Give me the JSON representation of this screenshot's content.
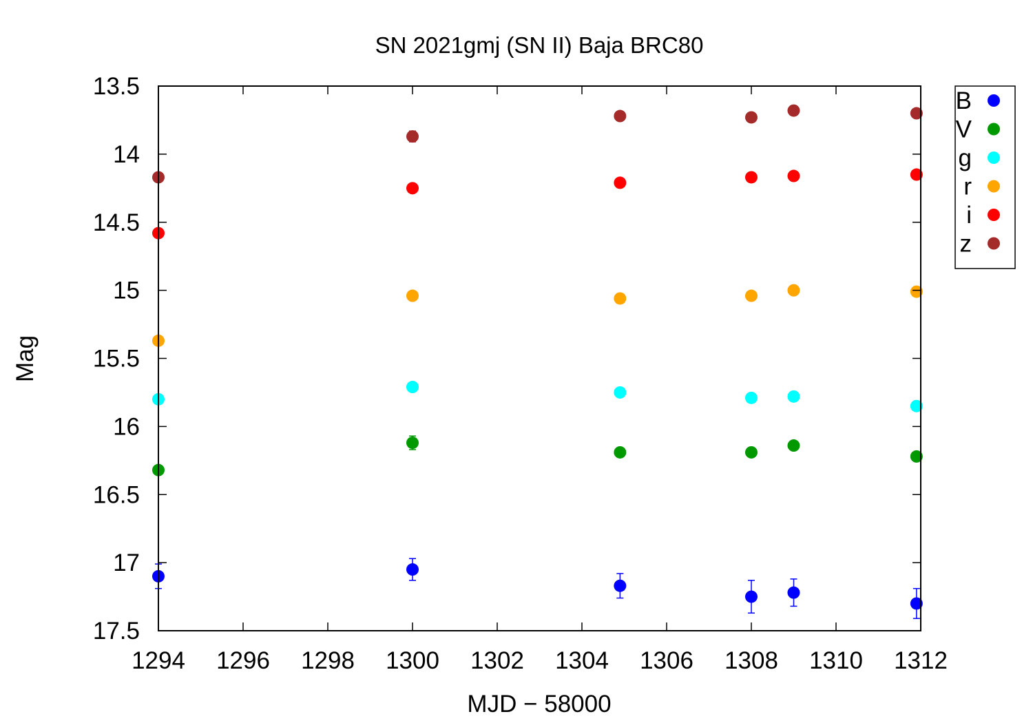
{
  "chart_data": {
    "type": "scatter",
    "title": "SN 2021gmj (SN II) Baja BRC80",
    "xlabel": "MJD − 58000",
    "ylabel": "Mag",
    "xlim": [
      1294,
      1312
    ],
    "ylim": [
      13.5,
      17.5
    ],
    "y_inverted": true,
    "x_ticks": [
      "1294",
      "1296",
      "1298",
      "1300",
      "1302",
      "1304",
      "1306",
      "1308",
      "1310",
      "1312"
    ],
    "y_ticks": [
      "13.5",
      "14",
      "14.5",
      "15",
      "15.5",
      "16",
      "16.5",
      "17",
      "17.5"
    ],
    "grid": false,
    "legend_position": "outside-top-right",
    "series": [
      {
        "name": "B",
        "color": "#0000ff",
        "points": [
          {
            "x": 1294.0,
            "y": 17.1,
            "err": 0.09
          },
          {
            "x": 1300.0,
            "y": 17.05,
            "err": 0.08
          },
          {
            "x": 1304.9,
            "y": 17.17,
            "err": 0.09
          },
          {
            "x": 1308.0,
            "y": 17.25,
            "err": 0.12
          },
          {
            "x": 1309.0,
            "y": 17.22,
            "err": 0.1
          },
          {
            "x": 1311.9,
            "y": 17.3,
            "err": 0.11
          }
        ]
      },
      {
        "name": "V",
        "color": "#009900",
        "points": [
          {
            "x": 1294.0,
            "y": 16.32,
            "err": 0.02
          },
          {
            "x": 1300.0,
            "y": 16.12,
            "err": 0.05
          },
          {
            "x": 1304.9,
            "y": 16.19,
            "err": 0.02
          },
          {
            "x": 1308.0,
            "y": 16.19,
            "err": 0.02
          },
          {
            "x": 1309.0,
            "y": 16.14,
            "err": 0.02
          },
          {
            "x": 1311.9,
            "y": 16.22,
            "err": 0.02
          }
        ]
      },
      {
        "name": "g",
        "color": "#00ffff",
        "points": [
          {
            "x": 1294.0,
            "y": 15.8,
            "err": 0.02
          },
          {
            "x": 1300.0,
            "y": 15.71,
            "err": 0.02
          },
          {
            "x": 1304.9,
            "y": 15.75,
            "err": 0.02
          },
          {
            "x": 1308.0,
            "y": 15.79,
            "err": 0.02
          },
          {
            "x": 1309.0,
            "y": 15.78,
            "err": 0.02
          },
          {
            "x": 1311.9,
            "y": 15.85,
            "err": 0.02
          }
        ]
      },
      {
        "name": "r",
        "color": "#ffa500",
        "points": [
          {
            "x": 1294.0,
            "y": 15.37,
            "err": 0.02
          },
          {
            "x": 1300.0,
            "y": 15.04,
            "err": 0.02
          },
          {
            "x": 1304.9,
            "y": 15.06,
            "err": 0.02
          },
          {
            "x": 1308.0,
            "y": 15.04,
            "err": 0.02
          },
          {
            "x": 1309.0,
            "y": 15.0,
            "err": 0.02
          },
          {
            "x": 1311.9,
            "y": 15.01,
            "err": 0.02
          }
        ]
      },
      {
        "name": "i",
        "color": "#ff0000",
        "points": [
          {
            "x": 1294.0,
            "y": 14.58,
            "err": 0.02
          },
          {
            "x": 1300.0,
            "y": 14.25,
            "err": 0.02
          },
          {
            "x": 1304.9,
            "y": 14.21,
            "err": 0.02
          },
          {
            "x": 1308.0,
            "y": 14.17,
            "err": 0.02
          },
          {
            "x": 1309.0,
            "y": 14.16,
            "err": 0.02
          },
          {
            "x": 1311.9,
            "y": 14.15,
            "err": 0.02
          }
        ]
      },
      {
        "name": "z",
        "color": "#a52a2a",
        "points": [
          {
            "x": 1294.0,
            "y": 14.17,
            "err": 0.02
          },
          {
            "x": 1300.0,
            "y": 13.87,
            "err": 0.04
          },
          {
            "x": 1304.9,
            "y": 13.72,
            "err": 0.02
          },
          {
            "x": 1308.0,
            "y": 13.73,
            "err": 0.02
          },
          {
            "x": 1309.0,
            "y": 13.68,
            "err": 0.02
          },
          {
            "x": 1311.9,
            "y": 13.7,
            "err": 0.02
          }
        ]
      }
    ]
  }
}
